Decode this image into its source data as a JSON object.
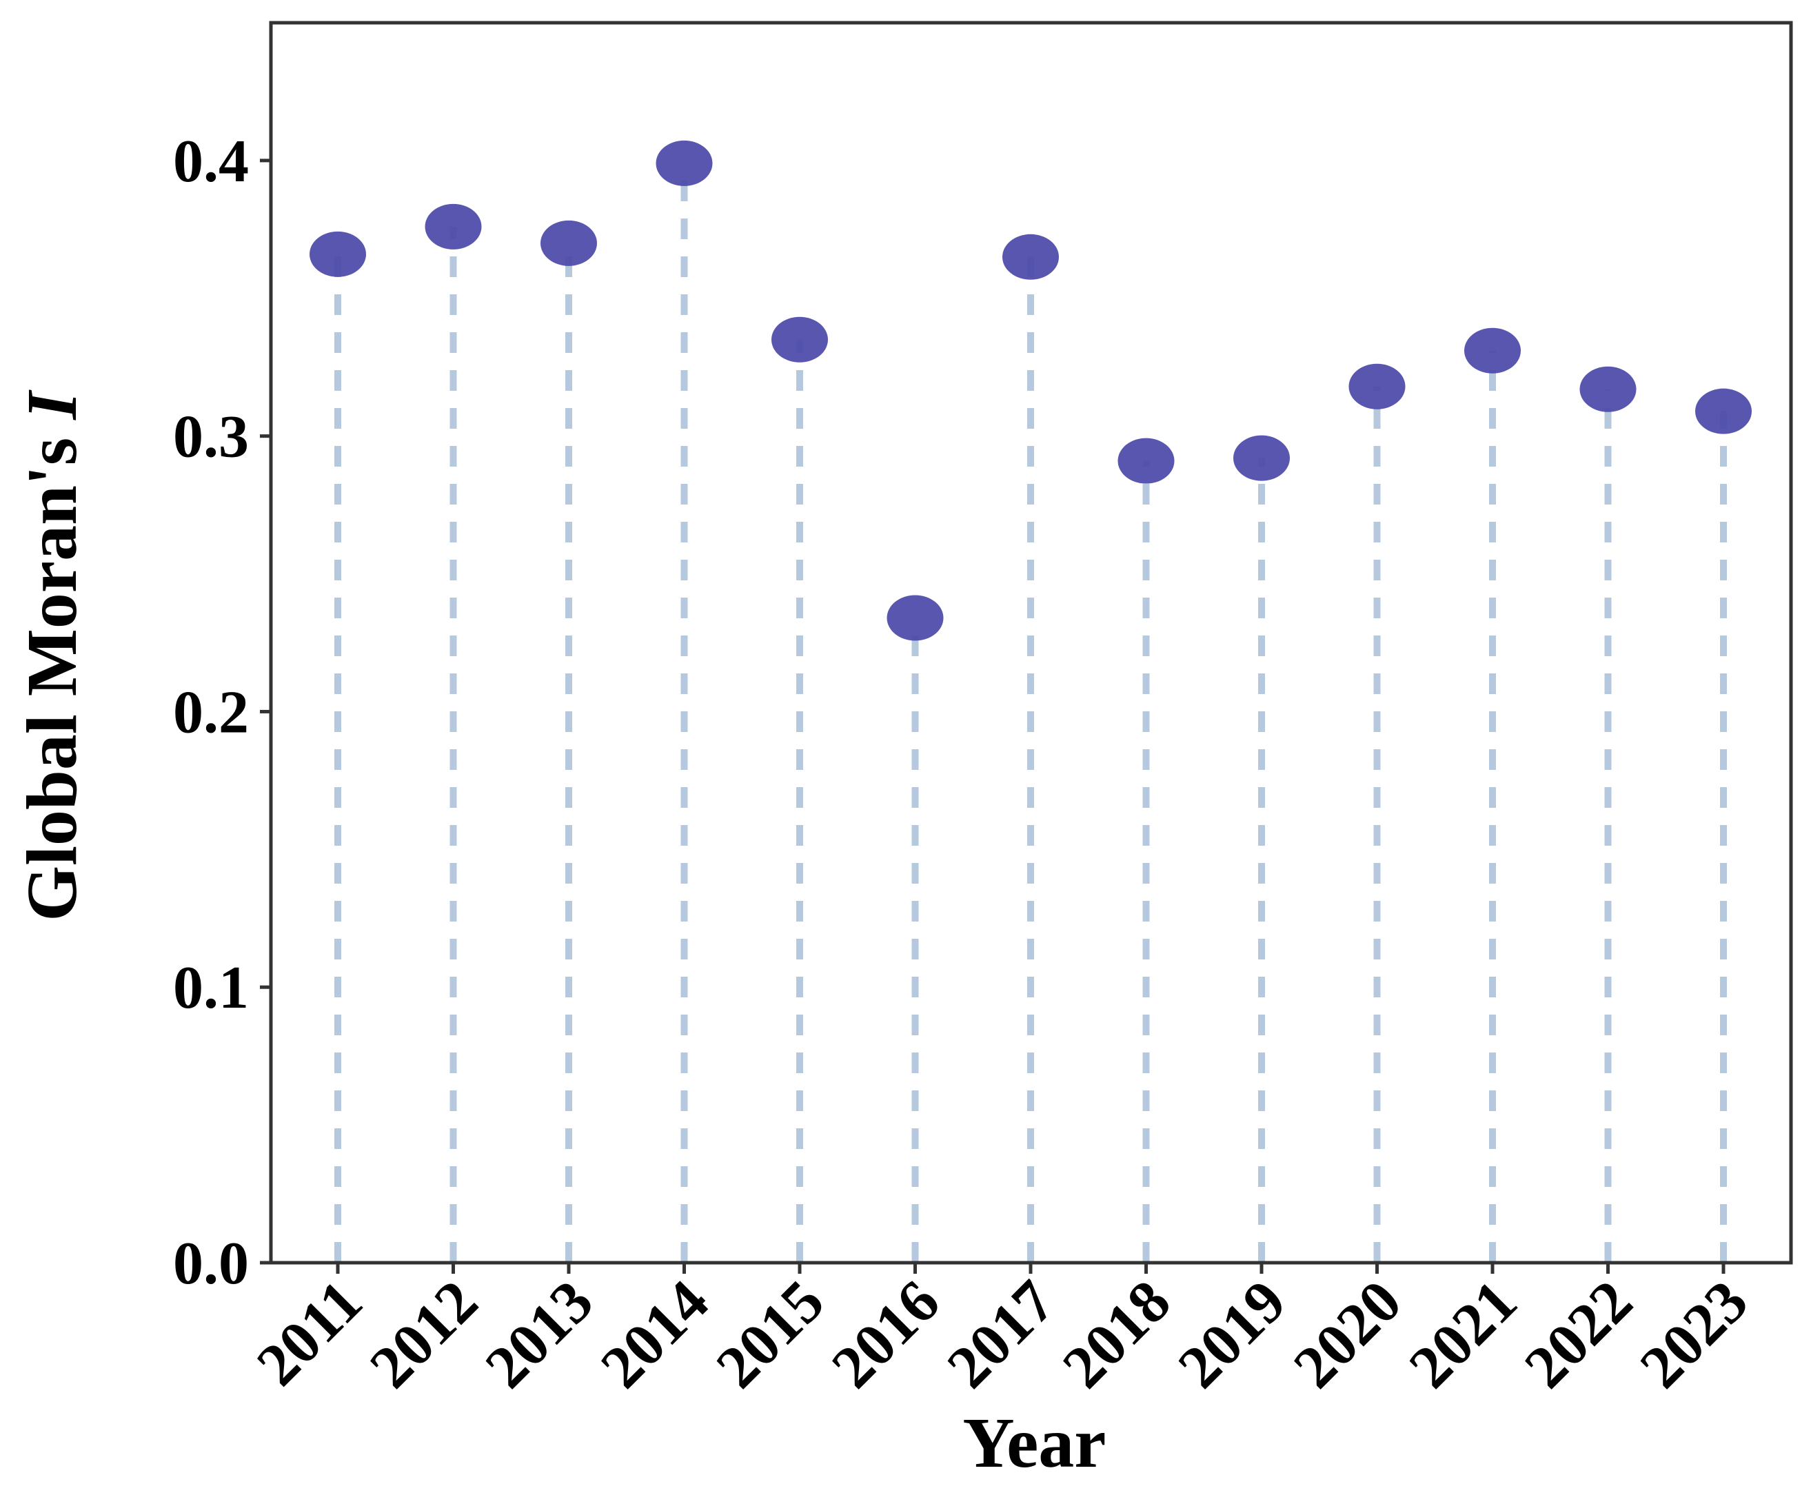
{
  "chart_data": {
    "type": "scatter",
    "title": "",
    "xlabel": "Year",
    "ylabel": "Global Moran's ",
    "ylabel_italic": "I",
    "x": [
      "2011",
      "2012",
      "2013",
      "2014",
      "2015",
      "2016",
      "2017",
      "2018",
      "2019",
      "2020",
      "2021",
      "2022",
      "2023"
    ],
    "series": [
      {
        "values": [
          0.366,
          0.376,
          0.37,
          0.399,
          0.335,
          0.234,
          0.365,
          0.291,
          0.292,
          0.318,
          0.331,
          0.317,
          0.309
        ]
      }
    ],
    "ylim": [
      0,
      0.45
    ],
    "yticks": [
      "0.0",
      "0.1",
      "0.2",
      "0.3",
      "0.4"
    ],
    "grid": false,
    "point_color": "#4B48A8",
    "stem_color": "#A9BFD8",
    "stem_style": "dashed"
  }
}
